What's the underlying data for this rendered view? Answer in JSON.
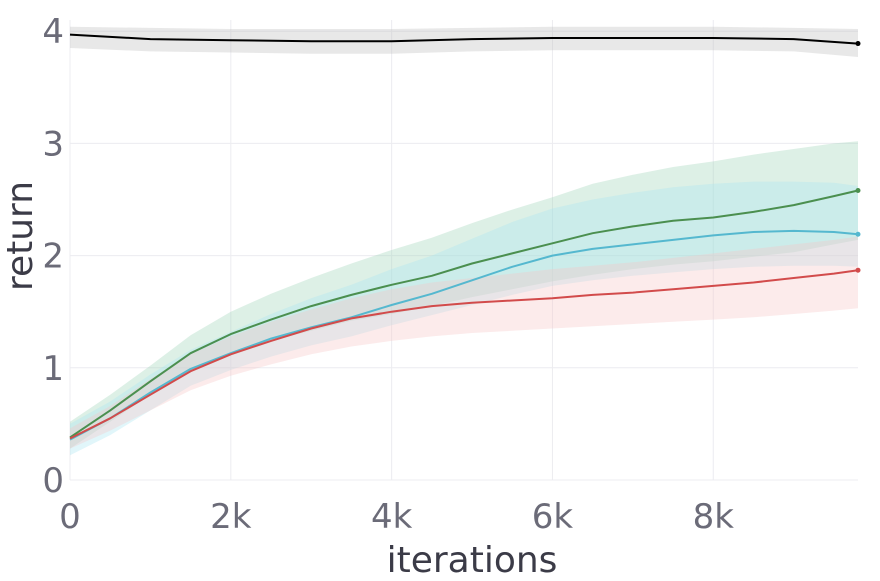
{
  "chart_data": {
    "type": "line",
    "title": "",
    "xlabel": "iterations",
    "ylabel": "return",
    "xlim": [
      0,
      9800
    ],
    "ylim": [
      0,
      4.1
    ],
    "x_ticks": [
      0,
      2000,
      4000,
      6000,
      8000
    ],
    "x_tick_labels": [
      "0",
      "2k",
      "4k",
      "6k",
      "8k"
    ],
    "y_ticks": [
      0,
      1,
      2,
      3,
      4
    ],
    "y_tick_labels": [
      "0",
      "1",
      "2",
      "3",
      "4"
    ],
    "grid": true,
    "legend": "none",
    "series": [
      {
        "color": "#000000",
        "band_color": "#bdbdbd",
        "x": [
          0,
          1000,
          2000,
          3000,
          4000,
          5000,
          6000,
          7000,
          8000,
          9000,
          9800
        ],
        "y": [
          3.97,
          3.93,
          3.92,
          3.91,
          3.91,
          3.93,
          3.94,
          3.94,
          3.94,
          3.93,
          3.89
        ],
        "low": [
          3.85,
          3.82,
          3.81,
          3.8,
          3.8,
          3.82,
          3.83,
          3.83,
          3.83,
          3.82,
          3.77
        ],
        "high": [
          4.04,
          4.03,
          4.02,
          4.02,
          4.02,
          4.03,
          4.04,
          4.04,
          4.04,
          4.03,
          4.02
        ]
      },
      {
        "color": "#4b8f4f",
        "band_color": "#9fd4b8",
        "x": [
          0,
          500,
          1000,
          1500,
          2000,
          2500,
          3000,
          3500,
          4000,
          4500,
          5000,
          5500,
          6000,
          6500,
          7000,
          7500,
          8000,
          8500,
          9000,
          9500,
          9800
        ],
        "y": [
          0.38,
          0.62,
          0.88,
          1.13,
          1.3,
          1.43,
          1.55,
          1.65,
          1.74,
          1.82,
          1.93,
          2.02,
          2.11,
          2.2,
          2.26,
          2.31,
          2.34,
          2.39,
          2.45,
          2.53,
          2.58
        ],
        "low": [
          0.28,
          0.52,
          0.76,
          0.98,
          1.12,
          1.24,
          1.33,
          1.42,
          1.48,
          1.55,
          1.63,
          1.7,
          1.77,
          1.83,
          1.88,
          1.92,
          1.95,
          1.99,
          2.03,
          2.1,
          2.14
        ],
        "high": [
          0.52,
          0.76,
          1.02,
          1.29,
          1.5,
          1.66,
          1.8,
          1.93,
          2.05,
          2.16,
          2.29,
          2.41,
          2.52,
          2.64,
          2.72,
          2.79,
          2.84,
          2.9,
          2.95,
          3.0,
          3.02
        ]
      },
      {
        "color": "#55b8cf",
        "band_color": "#a8e6f0",
        "x": [
          0,
          500,
          1000,
          1500,
          2000,
          2500,
          3000,
          3500,
          4000,
          4500,
          5000,
          5500,
          6000,
          6500,
          7000,
          7500,
          8000,
          8500,
          9000,
          9500,
          9800
        ],
        "y": [
          0.36,
          0.55,
          0.78,
          0.99,
          1.13,
          1.26,
          1.36,
          1.45,
          1.56,
          1.66,
          1.78,
          1.9,
          2.0,
          2.06,
          2.1,
          2.14,
          2.18,
          2.21,
          2.22,
          2.21,
          2.19
        ],
        "low": [
          0.22,
          0.4,
          0.62,
          0.84,
          0.98,
          1.1,
          1.2,
          1.28,
          1.38,
          1.47,
          1.56,
          1.65,
          1.73,
          1.78,
          1.82,
          1.85,
          1.88,
          1.9,
          1.91,
          1.91,
          1.9
        ],
        "high": [
          0.5,
          0.7,
          0.94,
          1.16,
          1.32,
          1.48,
          1.62,
          1.74,
          1.88,
          2.0,
          2.15,
          2.3,
          2.42,
          2.5,
          2.56,
          2.61,
          2.64,
          2.66,
          2.66,
          2.65,
          2.62
        ]
      },
      {
        "color": "#d24b4b",
        "band_color": "#f7c6c6",
        "x": [
          0,
          500,
          1000,
          1500,
          2000,
          2500,
          3000,
          3500,
          4000,
          4500,
          5000,
          5500,
          6000,
          6500,
          7000,
          7500,
          8000,
          8500,
          9000,
          9500,
          9800
        ],
        "y": [
          0.37,
          0.55,
          0.76,
          0.97,
          1.12,
          1.24,
          1.35,
          1.44,
          1.5,
          1.55,
          1.58,
          1.6,
          1.62,
          1.65,
          1.67,
          1.7,
          1.73,
          1.76,
          1.8,
          1.84,
          1.87
        ],
        "low": [
          0.28,
          0.44,
          0.62,
          0.8,
          0.93,
          1.03,
          1.12,
          1.19,
          1.24,
          1.28,
          1.31,
          1.33,
          1.35,
          1.37,
          1.39,
          1.41,
          1.43,
          1.45,
          1.48,
          1.51,
          1.53
        ],
        "high": [
          0.46,
          0.66,
          0.9,
          1.12,
          1.28,
          1.41,
          1.52,
          1.62,
          1.7,
          1.76,
          1.8,
          1.84,
          1.88,
          1.91,
          1.94,
          1.98,
          2.02,
          2.06,
          2.1,
          2.14,
          2.17
        ]
      }
    ]
  }
}
